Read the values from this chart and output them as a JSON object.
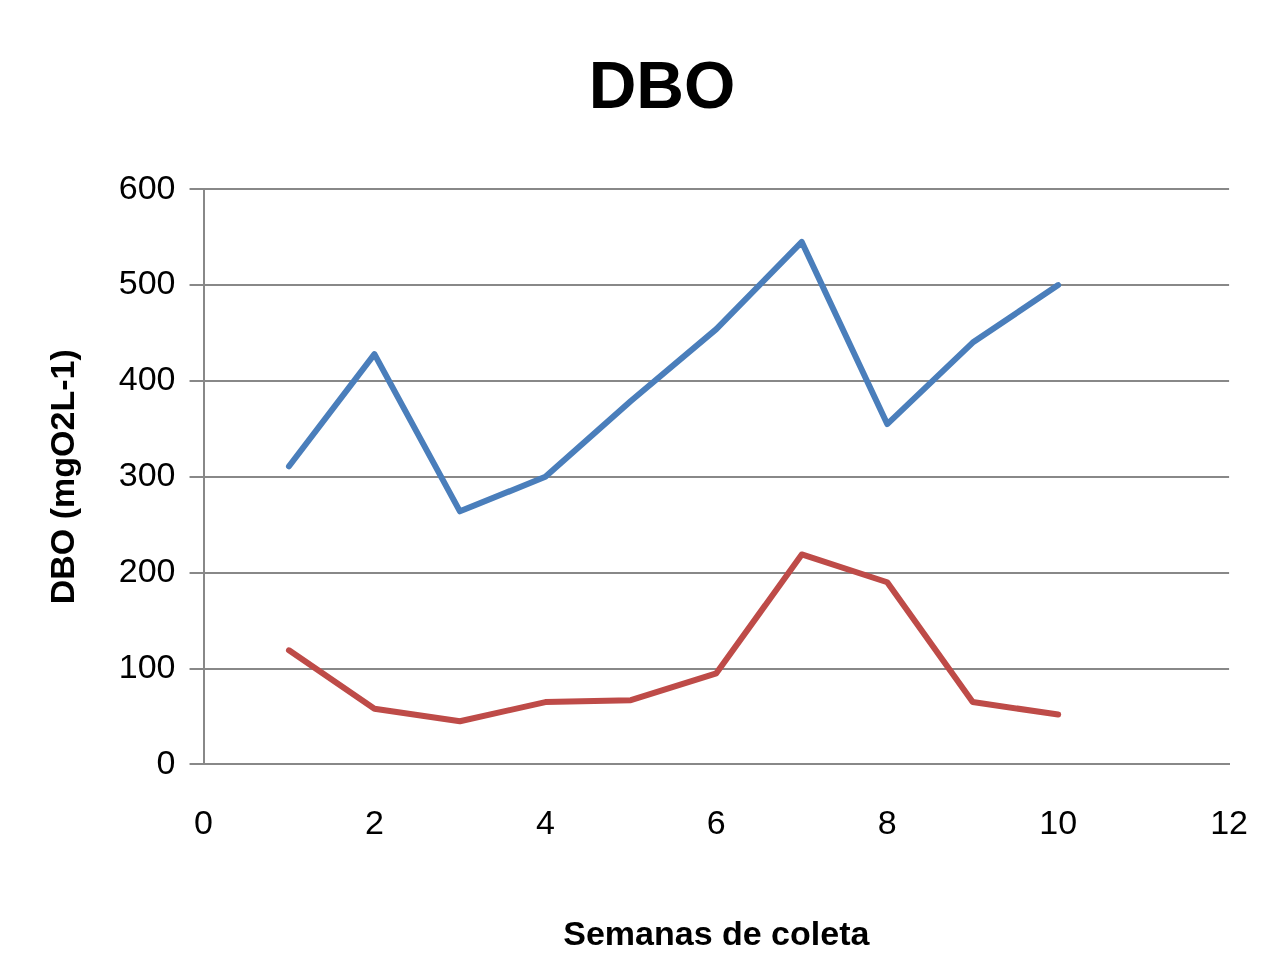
{
  "chart_data": {
    "type": "line",
    "title": "DBO",
    "xlabel": "Semanas de coleta",
    "ylabel": "DBO (mgO2L-1)",
    "x": [
      1,
      2,
      3,
      4,
      5,
      6,
      7,
      8,
      9,
      10
    ],
    "series": [
      {
        "color": "#4a7ebb",
        "values": [
          311,
          428,
          264,
          300,
          379,
          454,
          545,
          355,
          440,
          500
        ]
      },
      {
        "color": "#be4b48",
        "values": [
          119,
          58,
          45,
          65,
          67,
          95,
          219,
          190,
          65,
          52
        ]
      }
    ],
    "xlim": [
      0,
      12
    ],
    "xticks": [
      0,
      2,
      4,
      6,
      8,
      10,
      12
    ],
    "ylim": [
      0,
      600
    ],
    "yticks": [
      0,
      100,
      200,
      300,
      400,
      500,
      600
    ],
    "grid": "y",
    "legend": false,
    "marker": "none",
    "line_style": "solid"
  }
}
